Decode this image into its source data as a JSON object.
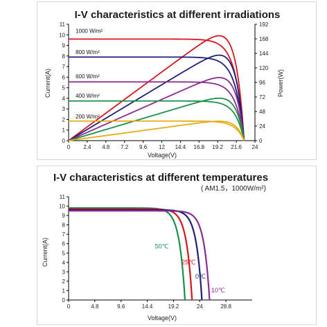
{
  "chart_data": [
    {
      "type": "line",
      "title": "I-V characteristics at different irradiations",
      "xlabel": "Voltage(V)",
      "ylabel": "Current(A)",
      "y2label": "Power(W)",
      "xlim": [
        0,
        24
      ],
      "ylim": [
        0,
        11
      ],
      "y2lim": [
        0,
        192
      ],
      "xticks": [
        "0",
        "2.4",
        "4.8",
        "7.2",
        "9.6",
        "12",
        "14.4",
        "16.8",
        "19.2",
        "21.6",
        "24"
      ],
      "yticks": [
        "0",
        "1",
        "2",
        "3",
        "4",
        "5",
        "6",
        "7",
        "8",
        "9",
        "10",
        "11"
      ],
      "y2ticks": [
        "0",
        "24",
        "48",
        "72",
        "96",
        "120",
        "144",
        "168",
        "192"
      ],
      "voc": 22.6,
      "series": [
        {
          "name": "1000 W/m²",
          "color": "#d8141e",
          "isc": 9.6,
          "pmax_v": 18.7,
          "pmax_w": 173
        },
        {
          "name": "800 W/m²",
          "color": "#1f1f7a",
          "isc": 7.9,
          "pmax_v": 18.5,
          "pmax_w": 141
        },
        {
          "name": "600 W/m²",
          "color": "#8a2b8f",
          "isc": 5.55,
          "pmax_v": 18.3,
          "pmax_w": 104
        },
        {
          "name": "400 W/m²",
          "color": "#1b9048",
          "isc": 3.75,
          "pmax_v": 17.9,
          "pmax_w": 70
        },
        {
          "name": "200 W/m²",
          "color": "#e6ac12",
          "isc": 1.85,
          "pmax_v": 18.5,
          "pmax_w": 32
        }
      ]
    },
    {
      "type": "line",
      "title": "I-V characteristics at different temperatures",
      "subtitle": "( AM1.5，1000W/m²)",
      "xlabel": "Voltage(V)",
      "ylabel": "Current(A)",
      "xlim": [
        0,
        33.6
      ],
      "ylim": [
        0,
        11
      ],
      "xticks": [
        "0",
        "4.8",
        "9.6",
        "14.4",
        "19.2",
        "24",
        "28.8"
      ],
      "yticks": [
        "0",
        "1",
        "2",
        "3",
        "4",
        "5",
        "6",
        "7",
        "8",
        "9",
        "10",
        "11"
      ],
      "series": [
        {
          "name": "50℃",
          "color": "#1b9048",
          "isc": 9.8,
          "voc": 21.3
        },
        {
          "name": "25℃",
          "color": "#d8141e",
          "isc": 9.7,
          "voc": 22.6
        },
        {
          "name": "0℃",
          "color": "#1f1f7a",
          "isc": 9.6,
          "voc": 24.4
        },
        {
          "name": "10℃",
          "color": "#8a2b8f",
          "isc": 9.5,
          "voc": 25.8
        }
      ]
    }
  ]
}
